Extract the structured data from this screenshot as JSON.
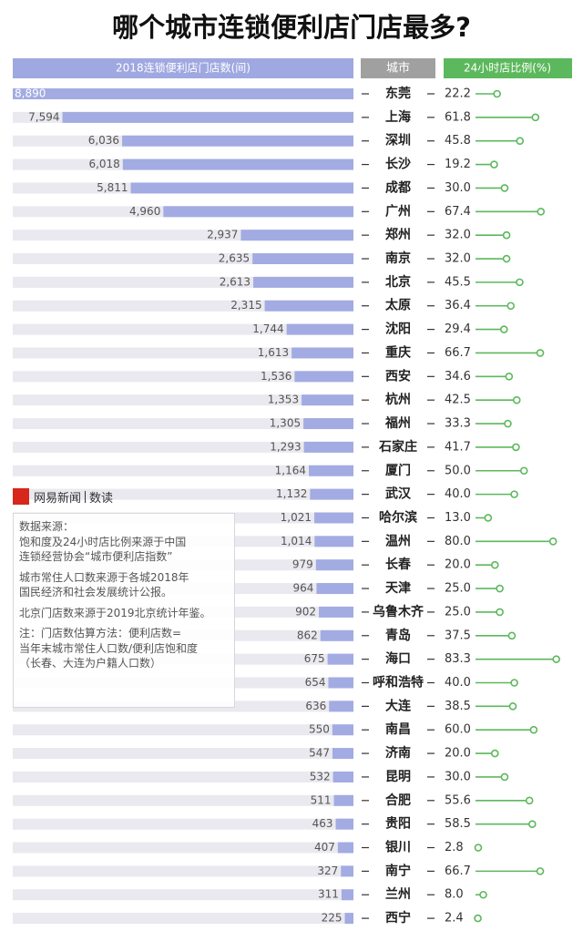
{
  "chart_data": {
    "type": "bar",
    "title": "哪个城市连锁便利店门店最多?",
    "category_header": "城市",
    "categories": [
      "东莞",
      "上海",
      "深圳",
      "长沙",
      "成都",
      "广州",
      "郑州",
      "南京",
      "北京",
      "太原",
      "沈阳",
      "重庆",
      "西安",
      "杭州",
      "福州",
      "石家庄",
      "厦门",
      "武汉",
      "哈尔滨",
      "温州",
      "长春",
      "天津",
      "乌鲁木齐",
      "青岛",
      "海口",
      "呼和浩特",
      "大连",
      "南昌",
      "济南",
      "昆明",
      "合肥",
      "贵阳",
      "银川",
      "南宁",
      "兰州",
      "西宁"
    ],
    "xlim": [
      0,
      8890
    ],
    "series": [
      {
        "name": "2018连锁便利店门店数(间)",
        "color": "#a3abe3",
        "values": [
          8890,
          7594,
          6036,
          6018,
          5811,
          4960,
          2937,
          2635,
          2613,
          2315,
          1744,
          1613,
          1536,
          1353,
          1305,
          1293,
          1164,
          1132,
          1021,
          1014,
          979,
          964,
          902,
          862,
          675,
          654,
          636,
          550,
          547,
          532,
          511,
          463,
          407,
          327,
          311,
          225
        ],
        "value_labels": [
          "8,890",
          "7,594",
          "6,036",
          "6,018",
          "5,811",
          "4,960",
          "2,937",
          "2,635",
          "2,613",
          "2,315",
          "1,744",
          "1,613",
          "1,536",
          "1,353",
          "1,305",
          "1,293",
          "1,164",
          "1,132",
          "1,021",
          "1,014",
          "979",
          "964",
          "902",
          "862",
          "675",
          "654",
          "636",
          "550",
          "547",
          "532",
          "511",
          "463",
          "407",
          "327",
          "311",
          "225"
        ]
      },
      {
        "name": "24小时店比例(%)",
        "type": "lollipop",
        "color": "#5cb85c",
        "xlim": [
          0,
          85
        ],
        "values": [
          22.2,
          61.8,
          45.8,
          19.2,
          30.0,
          67.4,
          32.0,
          32.0,
          45.5,
          36.4,
          29.4,
          66.7,
          34.6,
          42.5,
          33.3,
          41.7,
          50.0,
          40.0,
          13.0,
          80.0,
          20.0,
          25.0,
          25.0,
          37.5,
          83.3,
          40.0,
          38.5,
          60.0,
          20.0,
          30.0,
          55.6,
          58.5,
          2.8,
          66.7,
          8.0,
          2.4
        ],
        "value_labels": [
          "22.2",
          "61.8",
          "45.8",
          "19.2",
          "30.0",
          "67.4",
          "32.0",
          "32.0",
          "45.5",
          "36.4",
          "29.4",
          "66.7",
          "34.6",
          "42.5",
          "33.3",
          "41.7",
          "50.0",
          "40.0",
          "13.0",
          "80.0",
          "20.0",
          "25.0",
          "25.0",
          "37.5",
          "83.3",
          "40.0",
          "38.5",
          "60.0",
          "20.0",
          "30.0",
          "55.6",
          "58.5",
          "2.8",
          "66.7",
          "8.0",
          "2.4"
        ]
      }
    ]
  },
  "source": {
    "brand": "网易新闻",
    "section": "数读",
    "lines": [
      "数据来源：",
      "饱和度及24小时店比例来源于中国",
      "连锁经营协会“城市便利店指数”",
      "城市常住人口数来源于各城2018年",
      "国民经济和社会发展统计公报。",
      "北京门店数来源于2019北京统计年鉴。",
      "注：门店数估算方法：便利店数=",
      "当年末城市常住人口数/便利店饱和度",
      "（长春、大连为户籍人口数）"
    ]
  }
}
